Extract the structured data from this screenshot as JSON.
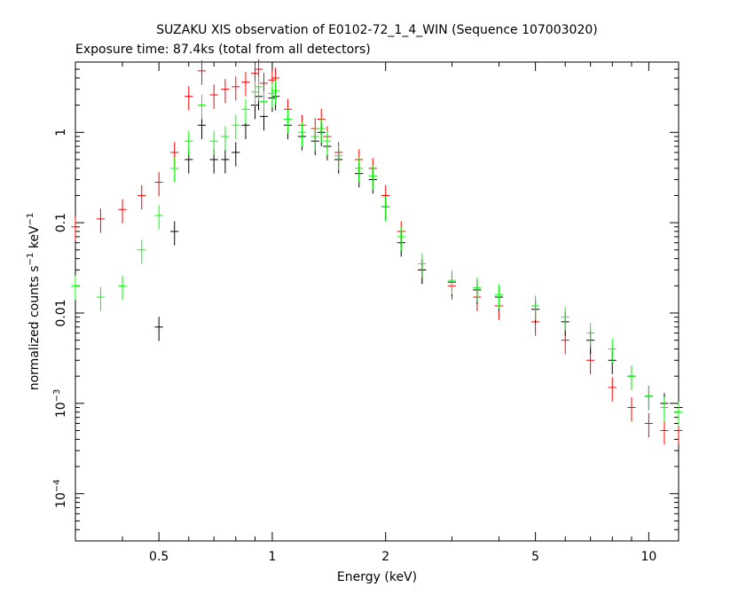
{
  "chart_data": {
    "type": "scatter",
    "title": "SUZAKU XIS observation of E0102-72_1_4_WIN (Sequence 107003020)",
    "subtitle": "Exposure time: 87.4ks (total from all detectors)",
    "xlabel": "Energy (keV)",
    "ylabel_main": "normalized counts s",
    "ylabel_sup1": "−1",
    "ylabel_mid": " keV",
    "ylabel_sup2": "−1",
    "x_scale": "log",
    "y_scale": "log",
    "xlim": [
      0.3,
      12
    ],
    "ylim": [
      3e-05,
      6
    ],
    "x_ticks": [
      {
        "value": 0.5,
        "label": "0.5"
      },
      {
        "value": 1,
        "label": "1"
      },
      {
        "value": 2,
        "label": "2"
      },
      {
        "value": 5,
        "label": "5"
      },
      {
        "value": 10,
        "label": "10"
      }
    ],
    "y_ticks": [
      {
        "value": 0.0001,
        "base": "10",
        "exp": "−4"
      },
      {
        "value": 0.001,
        "base": "10",
        "exp": "−3"
      },
      {
        "value": 0.01,
        "label": "0.01"
      },
      {
        "value": 0.1,
        "label": "0.1"
      },
      {
        "value": 1,
        "label": "1"
      }
    ],
    "grid": false,
    "series": [
      {
        "color": "#ff0000",
        "points": [
          [
            0.3,
            0.09
          ],
          [
            0.35,
            0.11
          ],
          [
            0.4,
            0.14
          ],
          [
            0.45,
            0.2
          ],
          [
            0.5,
            0.28
          ],
          [
            0.55,
            0.6
          ],
          [
            0.6,
            2.5
          ],
          [
            0.65,
            4.8
          ],
          [
            0.7,
            2.6
          ],
          [
            0.75,
            3.0
          ],
          [
            0.8,
            3.2
          ],
          [
            0.85,
            3.6
          ],
          [
            0.9,
            4.5
          ],
          [
            0.92,
            5.0
          ],
          [
            0.95,
            3.5
          ],
          [
            1.0,
            3.8
          ],
          [
            1.02,
            4.0
          ],
          [
            1.1,
            1.8
          ],
          [
            1.2,
            1.2
          ],
          [
            1.3,
            1.1
          ],
          [
            1.35,
            1.4
          ],
          [
            1.4,
            0.9
          ],
          [
            1.5,
            0.6
          ],
          [
            1.7,
            0.5
          ],
          [
            1.85,
            0.4
          ],
          [
            2.0,
            0.2
          ],
          [
            2.2,
            0.08
          ],
          [
            2.5,
            0.03
          ],
          [
            3.0,
            0.02
          ],
          [
            3.5,
            0.015
          ],
          [
            4.0,
            0.012
          ],
          [
            5.0,
            0.008
          ],
          [
            6.0,
            0.005
          ],
          [
            7.0,
            0.003
          ],
          [
            8.0,
            0.0015
          ],
          [
            9.0,
            0.0009
          ],
          [
            10.0,
            0.0006
          ],
          [
            11.0,
            0.0005
          ],
          [
            12.0,
            0.0005
          ]
        ]
      },
      {
        "color": "#000000",
        "points": [
          [
            0.5,
            0.007
          ],
          [
            0.55,
            0.08
          ],
          [
            0.6,
            0.5
          ],
          [
            0.65,
            1.2
          ],
          [
            0.7,
            0.5
          ],
          [
            0.75,
            0.5
          ],
          [
            0.8,
            0.6
          ],
          [
            0.85,
            1.2
          ],
          [
            0.9,
            2.0
          ],
          [
            0.92,
            2.5
          ],
          [
            0.95,
            1.5
          ],
          [
            1.0,
            2.4
          ],
          [
            1.02,
            2.5
          ],
          [
            1.1,
            1.2
          ],
          [
            1.2,
            0.9
          ],
          [
            1.3,
            0.8
          ],
          [
            1.35,
            1.0
          ],
          [
            1.4,
            0.7
          ],
          [
            1.5,
            0.5
          ],
          [
            1.7,
            0.35
          ],
          [
            1.85,
            0.3
          ],
          [
            2.0,
            0.15
          ],
          [
            2.2,
            0.06
          ],
          [
            2.5,
            0.03
          ],
          [
            3.0,
            0.022
          ],
          [
            3.5,
            0.018
          ],
          [
            4.0,
            0.015
          ],
          [
            5.0,
            0.011
          ],
          [
            6.0,
            0.008
          ],
          [
            7.0,
            0.005
          ],
          [
            8.0,
            0.003
          ],
          [
            9.0,
            0.002
          ],
          [
            10.0,
            0.0012
          ],
          [
            11.0,
            0.001
          ],
          [
            12.0,
            0.0009
          ]
        ]
      },
      {
        "color": "#00ff00",
        "points": [
          [
            0.3,
            0.02
          ],
          [
            0.35,
            0.015
          ],
          [
            0.4,
            0.02
          ],
          [
            0.45,
            0.05
          ],
          [
            0.5,
            0.12
          ],
          [
            0.55,
            0.4
          ],
          [
            0.6,
            0.8
          ],
          [
            0.65,
            2.0
          ],
          [
            0.7,
            0.8
          ],
          [
            0.75,
            0.9
          ],
          [
            0.8,
            1.2
          ],
          [
            0.85,
            1.8
          ],
          [
            0.9,
            2.8
          ],
          [
            0.92,
            3.2
          ],
          [
            0.95,
            2.2
          ],
          [
            1.0,
            2.7
          ],
          [
            1.02,
            2.9
          ],
          [
            1.1,
            1.4
          ],
          [
            1.2,
            1.0
          ],
          [
            1.3,
            0.9
          ],
          [
            1.35,
            1.1
          ],
          [
            1.4,
            0.8
          ],
          [
            1.5,
            0.55
          ],
          [
            1.7,
            0.4
          ],
          [
            1.85,
            0.33
          ],
          [
            2.0,
            0.15
          ],
          [
            2.2,
            0.07
          ],
          [
            2.5,
            0.035
          ],
          [
            3.0,
            0.023
          ],
          [
            3.5,
            0.019
          ],
          [
            4.0,
            0.016
          ],
          [
            5.0,
            0.012
          ],
          [
            6.0,
            0.009
          ],
          [
            7.0,
            0.006
          ],
          [
            8.0,
            0.004
          ],
          [
            9.0,
            0.002
          ],
          [
            10.0,
            0.0012
          ],
          [
            11.0,
            0.0009
          ],
          [
            12.0,
            0.0008
          ]
        ]
      }
    ]
  }
}
